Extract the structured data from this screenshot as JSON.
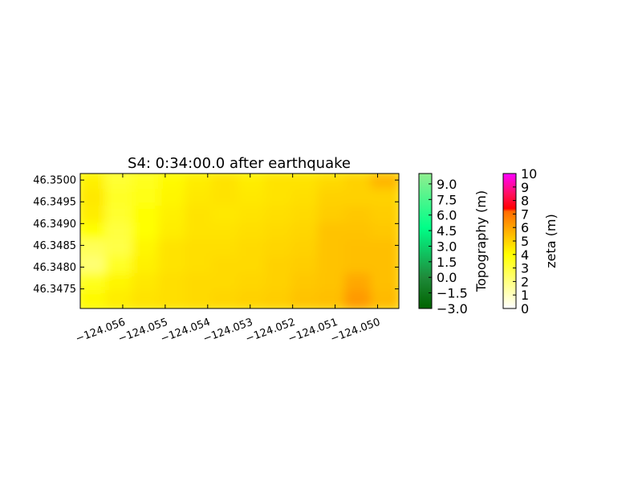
{
  "chart_data": {
    "type": "heatmap",
    "title": "S4: 0:34:00.0 after earthquake",
    "x_ticks": [
      "−124.056",
      "−124.055",
      "−124.054",
      "−124.053",
      "−124.052",
      "−124.051",
      "−124.050"
    ],
    "x_tick_values": [
      -124.056,
      -124.055,
      -124.054,
      -124.053,
      -124.052,
      -124.051,
      -124.05
    ],
    "y_ticks": [
      "46.3500",
      "46.3495",
      "46.3490",
      "46.3485",
      "46.3480",
      "46.3475"
    ],
    "y_tick_values": [
      46.35,
      46.3495,
      46.349,
      46.3485,
      46.348,
      46.3475
    ],
    "xlim": [
      -124.057,
      -124.0495
    ],
    "ylim": [
      46.34705,
      46.35015
    ],
    "grid": false,
    "field": {
      "name": "zeta",
      "description_rows_north_to_south": [
        [
          4.3,
          3.2,
          3.6,
          4.1,
          4.4,
          4.6,
          4.4,
          4.6,
          4.6,
          4.8,
          5.0,
          5.6
        ],
        [
          4.5,
          3.4,
          3.7,
          4.2,
          4.5,
          4.6,
          4.5,
          4.6,
          4.7,
          5.0,
          5.0,
          5.0
        ],
        [
          4.4,
          3.3,
          3.9,
          4.3,
          4.6,
          4.5,
          4.6,
          4.7,
          4.8,
          5.1,
          5.2,
          5.1
        ],
        [
          4.0,
          3.0,
          4.0,
          4.4,
          4.6,
          4.6,
          4.7,
          4.8,
          4.9,
          5.3,
          5.3,
          5.2
        ],
        [
          2.6,
          2.9,
          4.2,
          4.6,
          4.7,
          4.7,
          4.8,
          4.9,
          5.0,
          5.3,
          5.4,
          5.4
        ],
        [
          2.2,
          3.4,
          4.3,
          4.6,
          4.7,
          4.8,
          4.8,
          5.0,
          5.1,
          5.3,
          5.4,
          5.4
        ],
        [
          3.6,
          4.2,
          4.5,
          4.7,
          4.8,
          4.8,
          4.9,
          5.0,
          5.2,
          5.3,
          5.9,
          5.4
        ],
        [
          4.1,
          4.4,
          4.6,
          4.7,
          4.8,
          4.9,
          5.0,
          5.1,
          5.3,
          5.4,
          6.2,
          5.5
        ]
      ],
      "vmin": 0,
      "vmax": 10
    },
    "colorbars": [
      {
        "label": "Topography (m)",
        "ticks": [
          "9.0",
          "7.5",
          "6.0",
          "4.5",
          "3.0",
          "1.5",
          "0.0",
          "−1.5",
          "−3.0"
        ],
        "tick_values": [
          9.0,
          7.5,
          6.0,
          4.5,
          3.0,
          1.5,
          0.0,
          -1.5,
          -3.0
        ],
        "range": [
          -3.0,
          10.0
        ],
        "colors": [
          "#006400",
          "#00ff88",
          "#90ee90"
        ]
      },
      {
        "label": "zeta (m)",
        "ticks": [
          "10",
          "9",
          "8",
          "7",
          "6",
          "5",
          "4",
          "3",
          "2",
          "1",
          "0"
        ],
        "tick_values": [
          10,
          9,
          8,
          7,
          6,
          5,
          4,
          3,
          2,
          1,
          0
        ],
        "range": [
          0,
          10
        ],
        "colors": [
          "#ffffff",
          "#ffff00",
          "#ff8c00",
          "#ff0000",
          "#ff00ff"
        ]
      }
    ]
  }
}
